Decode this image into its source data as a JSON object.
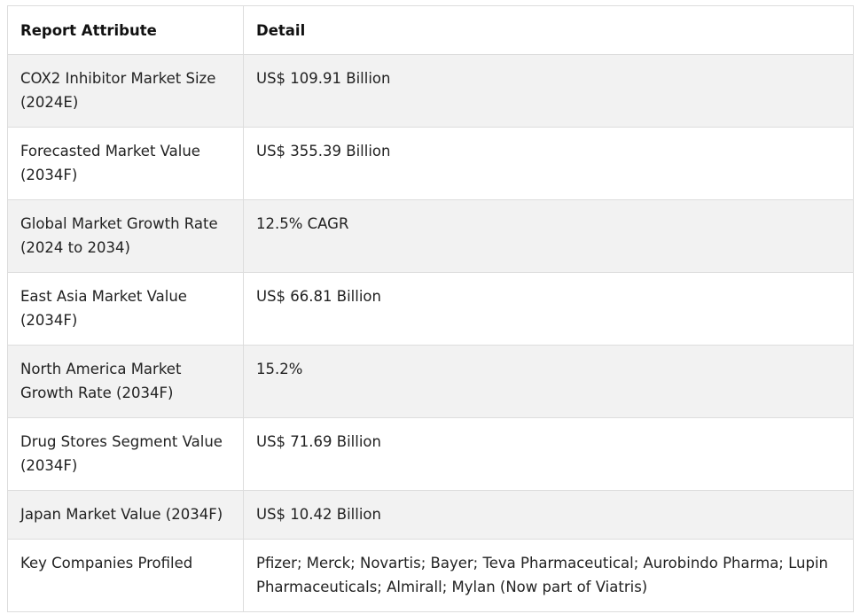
{
  "table": {
    "headers": [
      "Report Attribute",
      "Detail"
    ],
    "rows": [
      {
        "attribute": "COX2 Inhibitor Market Size (2024E)",
        "detail": "US$ 109.91 Billion"
      },
      {
        "attribute": "Forecasted Market Value (2034F)",
        "detail": "US$ 355.39 Billion"
      },
      {
        "attribute": "Global Market Growth Rate (2024 to 2034)",
        "detail": "12.5% CAGR"
      },
      {
        "attribute": "East Asia Market Value (2034F)",
        "detail": "US$ 66.81 Billion"
      },
      {
        "attribute": "North America Market Growth Rate (2034F)",
        "detail": "15.2%"
      },
      {
        "attribute": "Drug Stores Segment Value (2034F)",
        "detail": "US$ 71.69 Billion"
      },
      {
        "attribute": "Japan Market Value (2034F)",
        "detail": "US$ 10.42 Billion"
      },
      {
        "attribute": "Key Companies Profiled",
        "detail": "Pfizer; Merck; Novartis; Bayer; Teva Pharmaceutical; Aurobindo Pharma; Lupin Pharmaceuticals; Almirall; Mylan (Now part of Viatris)"
      }
    ]
  }
}
